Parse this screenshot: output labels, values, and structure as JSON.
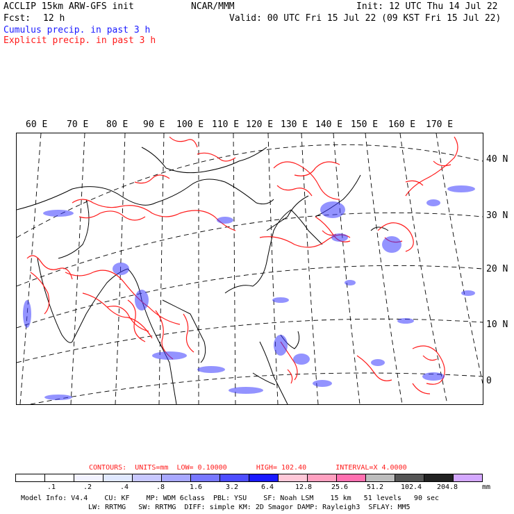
{
  "header": {
    "model_title": "ACCLIP 15km ARW-GFS init",
    "center": "NCAR/MMM",
    "init": "Init: 12 UTC Thu 14 Jul 22",
    "fcst_label": "Fcst:",
    "fcst_value": "12 h",
    "valid": "Valid: 00 UTC Fri 15 Jul 22 (09 KST Fri 15 Jul 22)",
    "line_cumulus": "Cumulus precip. in past 3 h",
    "line_explicit": "Explicit precip. in past 3 h"
  },
  "colors": {
    "cumulus": "#1a1aff",
    "explicit": "#ff1a1a",
    "coast": "#000000",
    "grid": "#000000"
  },
  "longitude_labels": [
    "60 E",
    "70 E",
    "80 E",
    "90 E",
    "100 E",
    "110 E",
    "120 E",
    "130 E",
    "140 E",
    "150 E",
    "160 E",
    "170 E"
  ],
  "latitude_labels": [
    "40 N",
    "30 N",
    "20 N",
    "10 N",
    "0"
  ],
  "contours": {
    "label": "CONTOURS:",
    "units": "UNITS=mm",
    "low": "LOW= 0.10000",
    "high": "HIGH= 102.40",
    "interval": "INTERVAL=X 4.0000"
  },
  "colorbar": {
    "colors": [
      "#ffffff",
      "#ffffff",
      "#f2f2ff",
      "#e0e8ff",
      "#c8c8ff",
      "#a8a8ff",
      "#7777ff",
      "#4d4dff",
      "#1a1aff",
      "#ffc8d8",
      "#ffa0c0",
      "#ff70b0",
      "#bdbdbd",
      "#555555",
      "#222222",
      "#d4a8ff"
    ],
    "ticks": [
      ".1",
      ".2",
      ".4",
      ".8",
      "1.6",
      "3.2",
      "6.4",
      "12.8",
      "25.6",
      "51.2",
      "102.4",
      "204.8"
    ],
    "unit": "mm"
  },
  "footer": {
    "line1": "Model Info: V4.4    CU: KF    MP: WDM 6class  PBL: YSU    SF: Noah LSM    15 km   51 levels   90 sec",
    "line2": "LW: RRTMG   SW: RRTMG  DIFF: simple KM: 2D Smagor DAMP: Rayleigh3  SFLAY: MM5"
  }
}
